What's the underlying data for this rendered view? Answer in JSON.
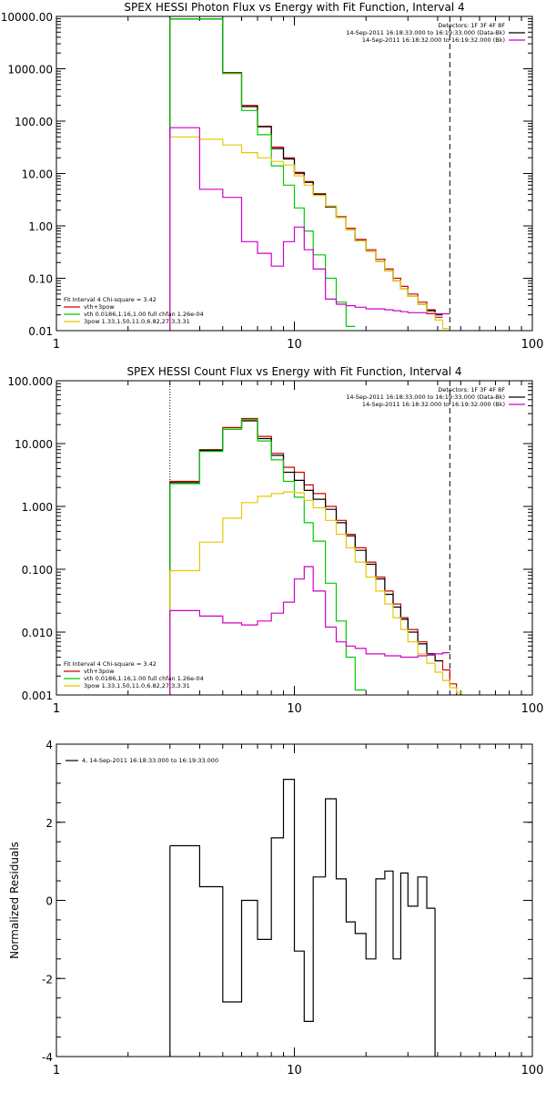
{
  "chart_data": [
    {
      "type": "line",
      "title": "SPEX HESSI Photon Flux vs Energy with Fit Function, Interval 4",
      "xlabel": "",
      "ylabel": "",
      "xscale": "log",
      "yscale": "log",
      "xlim": [
        1,
        100
      ],
      "ylim": [
        0.01,
        10000
      ],
      "ytick_values": [
        0.01,
        0.1,
        1,
        10,
        100,
        1000,
        10000
      ],
      "ytick_labels": [
        "0.01",
        "0.10",
        "1.00",
        "10.00",
        "100.00",
        "1000.00",
        "10000.00"
      ],
      "xtick_values": [
        1,
        10,
        100
      ],
      "xtick_labels": [
        "1",
        "10",
        "100"
      ],
      "legend_top_right": [
        {
          "text": "Detectors: 1F 3F 4F 8F",
          "color": null
        },
        {
          "text": "14-Sep-2011 16:18:33.000 to 16:19:33.000 (Data-Bk)",
          "color": "#000000"
        },
        {
          "text": "14-Sep-2011 16:18:32.000 to 16:19:32.000 (Bk)",
          "color": "#cc00cc"
        }
      ],
      "legend_bottom_left": [
        {
          "text": "Fit Interval  4    Chi-square = 3.42",
          "color": null
        },
        {
          "text": "vth+3pow",
          "color": "#cc0000"
        },
        {
          "text": "vth 0.0186,1.16,1.00  full chfan 1.26e-04",
          "color": "#00cc00"
        },
        {
          "text": "3pow 1.33,1.50,11.0,6.82,27.3,3.31",
          "color": "#e6c800"
        }
      ],
      "vlines": [
        {
          "x": 3.0,
          "style": "dotted"
        },
        {
          "x": 45,
          "style": "dashed"
        }
      ],
      "bin_edges": [
        3,
        4,
        5,
        6,
        7,
        8,
        9,
        10,
        11,
        12,
        13.5,
        15,
        16.5,
        18,
        20,
        22,
        24,
        26,
        28,
        30,
        33,
        36,
        39,
        42,
        45,
        48,
        51,
        54
      ],
      "series": [
        {
          "name": "vth+3pow",
          "color": "#cc0000",
          "values": [
            9000,
            9000,
            850,
            200,
            80,
            32,
            20,
            10,
            7,
            4,
            2.4,
            1.5,
            0.9,
            0.55,
            0.35,
            0.23,
            0.15,
            0.1,
            0.07,
            0.05,
            0.035,
            0.025,
            0.018,
            null,
            null,
            null,
            null
          ]
        },
        {
          "name": "",
          "color": "#000000",
          "values": [
            9000,
            9000,
            820,
            190,
            78,
            30,
            19,
            10.5,
            6.8,
            4.1,
            2.3,
            1.45,
            0.85,
            0.52,
            0.33,
            0.21,
            0.14,
            0.09,
            0.062,
            0.045,
            0.032,
            0.024,
            0.02,
            null,
            null,
            null,
            null
          ]
        },
        {
          "name": "vth 0.0186,1.16,1.00  full chfan 1.26e-04",
          "color": "#00cc00",
          "values": [
            9000,
            9000,
            820,
            160,
            55,
            14,
            6,
            2.2,
            0.8,
            0.28,
            0.1,
            0.035,
            0.012,
            null,
            null,
            null,
            null,
            null,
            null,
            null,
            null,
            null,
            null,
            null,
            null,
            null,
            null
          ]
        },
        {
          "name": "3pow 1.33,1.50,11.0,6.82,27.3,3.31",
          "color": "#e6c800",
          "values": [
            50,
            45,
            35,
            25,
            20,
            17,
            14.5,
            9,
            6,
            3.8,
            2.4,
            1.45,
            0.85,
            0.52,
            0.33,
            0.21,
            0.14,
            0.09,
            0.062,
            0.045,
            0.032,
            0.022,
            0.016,
            0.011,
            null,
            null,
            null
          ]
        },
        {
          "name": "",
          "color": "#cc00cc",
          "values": [
            75,
            5,
            3.5,
            0.5,
            0.3,
            0.17,
            0.5,
            0.95,
            0.35,
            0.15,
            0.04,
            0.032,
            0.03,
            0.028,
            0.026,
            0.026,
            0.025,
            0.024,
            0.023,
            0.022,
            0.022,
            0.021,
            0.021,
            0.021,
            null,
            null,
            null
          ]
        }
      ]
    },
    {
      "type": "line",
      "title": "SPEX HESSI Count Flux vs Energy with Fit Function, Interval 4",
      "xlabel": "",
      "ylabel": "",
      "xscale": "log",
      "yscale": "log",
      "xlim": [
        1,
        100
      ],
      "ylim": [
        0.001,
        100
      ],
      "ytick_values": [
        0.001,
        0.01,
        0.1,
        1,
        10,
        100
      ],
      "ytick_labels": [
        "0.001",
        "0.010",
        "0.100",
        "1.000",
        "10.000",
        "100.000"
      ],
      "xtick_values": [
        1,
        10,
        100
      ],
      "xtick_labels": [
        "1",
        "10",
        "100"
      ],
      "legend_top_right": [
        {
          "text": "Detectors: 1F 3F 4F 8F",
          "color": null
        },
        {
          "text": "14-Sep-2011 16:18:33.000 to 16:19:33.000 (Data-Bk)",
          "color": "#000000"
        },
        {
          "text": "14-Sep-2011 16:18:32.000 to 16:19:32.000 (Bk)",
          "color": "#cc00cc"
        }
      ],
      "legend_bottom_left": [
        {
          "text": "Fit Interval  4    Chi-square = 3.42",
          "color": null
        },
        {
          "text": "vth+3pow",
          "color": "#cc0000"
        },
        {
          "text": "vth 0.0186,1.16,1.00  full chfan 1.26e-04",
          "color": "#00cc00"
        },
        {
          "text": "3pow 1.33,1.50,11.0,6.82,27.3,3.31",
          "color": "#e6c800"
        }
      ],
      "vlines": [
        {
          "x": 3.0,
          "style": "dotted"
        },
        {
          "x": 45,
          "style": "dashed"
        }
      ],
      "bin_edges": [
        3,
        4,
        5,
        6,
        7,
        8,
        9,
        10,
        11,
        12,
        13.5,
        15,
        16.5,
        18,
        20,
        22,
        24,
        26,
        28,
        30,
        33,
        36,
        39,
        42,
        45,
        48,
        51,
        54
      ],
      "series": [
        {
          "name": "vth+3pow",
          "color": "#cc0000",
          "values": [
            2.5,
            8,
            18,
            25,
            13,
            7,
            4.2,
            3.5,
            2.2,
            1.6,
            1,
            0.6,
            0.36,
            0.22,
            0.13,
            0.075,
            0.045,
            0.028,
            0.017,
            0.011,
            0.007,
            0.0045,
            0.0035,
            0.0025,
            0.0015,
            0.001,
            null
          ]
        },
        {
          "name": "",
          "color": "#000000",
          "values": [
            2.4,
            7.8,
            17,
            23,
            12,
            6.5,
            3.5,
            2.6,
            1.8,
            1.3,
            0.9,
            0.55,
            0.34,
            0.2,
            0.12,
            0.07,
            0.04,
            0.025,
            0.016,
            0.01,
            0.0065,
            0.0045,
            0.0035,
            null,
            null,
            null,
            null
          ]
        },
        {
          "name": "vth 0.0186,1.16,1.00  full chfan 1.26e-04",
          "color": "#00cc00",
          "values": [
            2.3,
            7.5,
            17,
            24,
            11,
            5.5,
            2.5,
            1.4,
            0.55,
            0.28,
            0.06,
            0.015,
            0.004,
            0.0012,
            null,
            null,
            null,
            null,
            null,
            null,
            null,
            null,
            null,
            null,
            null,
            null,
            null
          ]
        },
        {
          "name": "3pow 1.33,1.50,11.0,6.82,27.3,3.31",
          "color": "#e6c800",
          "values": [
            0.095,
            0.27,
            0.65,
            1.15,
            1.45,
            1.6,
            1.7,
            1.65,
            1.25,
            0.95,
            0.6,
            0.36,
            0.22,
            0.13,
            0.075,
            0.045,
            0.028,
            0.017,
            0.011,
            0.007,
            0.0045,
            0.0032,
            0.0023,
            0.0017,
            0.0013,
            0.0011,
            null
          ]
        },
        {
          "name": "",
          "color": "#cc00cc",
          "values": [
            0.022,
            0.018,
            0.014,
            0.013,
            0.015,
            0.02,
            0.03,
            0.07,
            0.11,
            0.045,
            0.012,
            0.007,
            0.006,
            0.0055,
            0.0045,
            0.0045,
            0.0042,
            0.0042,
            0.004,
            0.004,
            0.0042,
            0.0043,
            0.0045,
            0.0047,
            null,
            null,
            null
          ]
        }
      ]
    },
    {
      "type": "line",
      "title": "",
      "xlabel": "",
      "ylabel": "Normalized Residuals",
      "xscale": "log",
      "yscale": "linear",
      "xlim": [
        1,
        100
      ],
      "ylim": [
        -4,
        4
      ],
      "ytick_values": [
        -4,
        -2,
        0,
        2,
        4
      ],
      "ytick_labels": [
        "-4",
        "-2",
        "0",
        "2",
        "4"
      ],
      "xtick_values": [
        1,
        10,
        100
      ],
      "xtick_labels": [
        "1",
        "10",
        "100"
      ],
      "legend_top_left": [
        {
          "text": "4, 14-Sep-2011 16:18:33.000 to 16:19:33.000",
          "color": "#000000"
        }
      ],
      "bin_edges": [
        3,
        4,
        5,
        6,
        7,
        8,
        9,
        10,
        11,
        12,
        13.5,
        15,
        16.5,
        18,
        20,
        22,
        24,
        26,
        28,
        30,
        33,
        36,
        39,
        42,
        45
      ],
      "series": [
        {
          "name": "",
          "color": "#000000",
          "values": [
            1.4,
            0.35,
            -2.6,
            0.0,
            -1.0,
            1.6,
            3.1,
            -1.3,
            -3.1,
            0.6,
            2.6,
            0.55,
            -0.55,
            -0.85,
            -1.5,
            0.55,
            0.75,
            -1.5,
            0.7,
            -0.15,
            0.6,
            -0.2
          ]
        }
      ]
    }
  ]
}
